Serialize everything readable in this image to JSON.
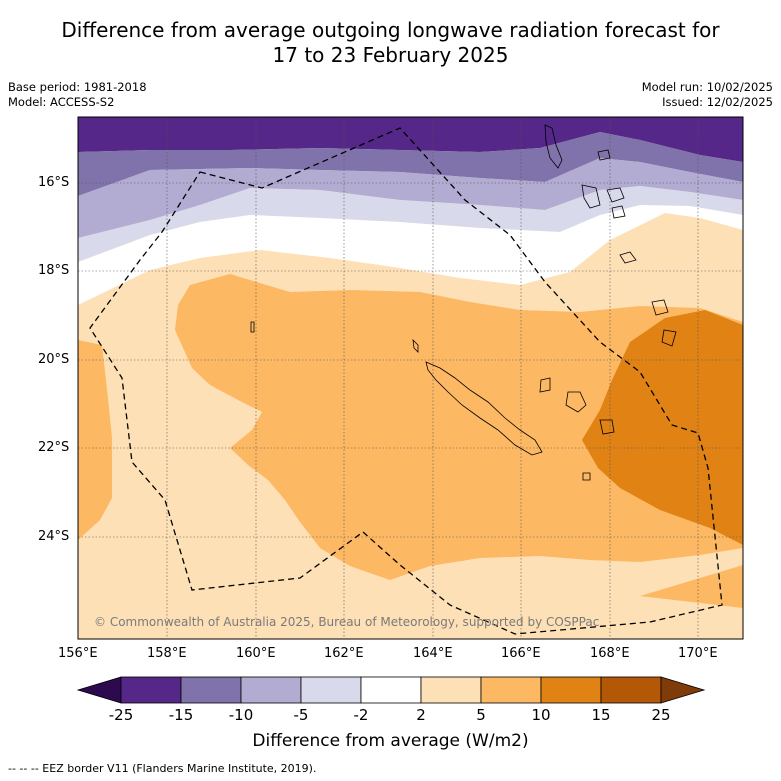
{
  "title_line1": "Difference from average outgoing longwave radiation forecast for",
  "title_line2": "17 to 23 February 2025",
  "base_period": "Base period: 1981-2018",
  "model": "Model: ACCESS-S2",
  "model_run": "Model run: 10/02/2025",
  "issued": "Issued: 12/02/2025",
  "copyright": "© Commonwealth of Australia 2025, Bureau of Meteorology, supported by COSPPac",
  "colorbar_label": "Difference from average (W/m2)",
  "eez_legend": "--  --  -- EEZ border V11 (Flanders Marine Institute, 2019).",
  "lat_labels": [
    "16°S",
    "18°S",
    "20°S",
    "22°S",
    "24°S"
  ],
  "lon_labels": [
    "156°E",
    "158°E",
    "160°E",
    "162°E",
    "164°E",
    "166°E",
    "168°E",
    "170°E"
  ],
  "colorbar": {
    "ticks": [
      "-25",
      "-15",
      "-10",
      "-5",
      "-2",
      "2",
      "5",
      "10",
      "15",
      "25"
    ],
    "colors": [
      "#2d0a4e",
      "#542788",
      "#8073ac",
      "#b2abd2",
      "#d8daeb",
      "#ffffff",
      "#fee0b6",
      "#fdb863",
      "#e08214",
      "#b35806",
      "#7f3b08"
    ]
  }
}
